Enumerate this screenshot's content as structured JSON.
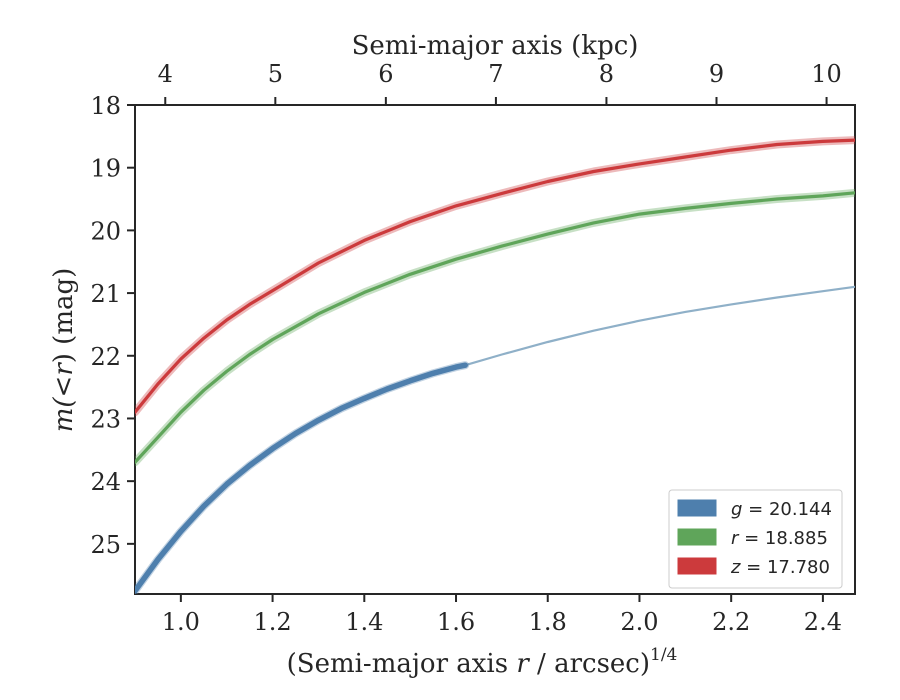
{
  "chart_data": {
    "type": "line",
    "title": "",
    "xlabel_parts": {
      "pre": "(Semi-major axis ",
      "var": "r",
      "post": " / arcsec)",
      "sup": "1/4"
    },
    "ylabel_parts": {
      "pre": "m(<",
      "var": "r",
      "post": ") (mag)"
    },
    "top_xlabel": "Semi-major axis (kpc)",
    "xlim": [
      0.9,
      2.47
    ],
    "ylim": [
      25.8,
      18.0
    ],
    "y_inverted": true,
    "x_ticks": [
      1.0,
      1.2,
      1.4,
      1.6,
      1.8,
      2.0,
      2.2,
      2.4
    ],
    "x_tick_labels": [
      "1.0",
      "1.2",
      "1.4",
      "1.6",
      "1.8",
      "2.0",
      "2.2",
      "2.4"
    ],
    "y_ticks": [
      18,
      19,
      20,
      21,
      22,
      23,
      24,
      25
    ],
    "y_tick_labels": [
      "18",
      "19",
      "20",
      "21",
      "22",
      "23",
      "24",
      "25"
    ],
    "top_ticks": [
      4,
      5,
      6,
      7,
      8,
      9,
      10
    ],
    "top_tick_labels": [
      "4",
      "5",
      "6",
      "7",
      "8",
      "9",
      "10"
    ],
    "top_tick_x_positions": [
      0.966,
      1.206,
      1.447,
      1.687,
      1.928,
      2.168,
      2.408
    ],
    "grid": false,
    "legend_position": "lower-right",
    "series": [
      {
        "name": "g = 20.144",
        "legend_var": "g",
        "legend_value": "20.144",
        "color": "#4e7fad",
        "x": [
          0.9,
          0.95,
          1.0,
          1.05,
          1.1,
          1.15,
          1.2,
          1.25,
          1.3,
          1.35,
          1.4,
          1.45,
          1.5,
          1.55,
          1.6,
          1.62
        ],
        "y": [
          25.75,
          25.25,
          24.8,
          24.4,
          24.05,
          23.75,
          23.48,
          23.24,
          23.03,
          22.84,
          22.68,
          22.53,
          22.4,
          22.28,
          22.18,
          22.15
        ],
        "extrapolation": {
          "color": "#8fb0c8",
          "x": [
            1.62,
            1.7,
            1.8,
            1.9,
            2.0,
            2.1,
            2.2,
            2.3,
            2.4,
            2.47
          ],
          "y": [
            22.15,
            21.98,
            21.78,
            21.6,
            21.44,
            21.3,
            21.18,
            21.07,
            20.97,
            20.9
          ]
        }
      },
      {
        "name": "r = 18.885",
        "legend_var": "r",
        "legend_value": "18.885",
        "color": "#5fa55a",
        "x": [
          0.9,
          0.95,
          1.0,
          1.05,
          1.1,
          1.15,
          1.2,
          1.3,
          1.4,
          1.5,
          1.6,
          1.7,
          1.8,
          1.9,
          2.0,
          2.1,
          2.2,
          2.3,
          2.4,
          2.47
        ],
        "y": [
          23.7,
          23.3,
          22.9,
          22.55,
          22.25,
          21.98,
          21.74,
          21.33,
          20.99,
          20.7,
          20.46,
          20.25,
          20.06,
          19.88,
          19.74,
          19.65,
          19.57,
          19.5,
          19.45,
          19.4
        ]
      },
      {
        "name": "z = 17.780",
        "legend_var": "z",
        "legend_value": "17.780",
        "color": "#cc3a3c",
        "x": [
          0.9,
          0.95,
          1.0,
          1.05,
          1.1,
          1.15,
          1.2,
          1.3,
          1.4,
          1.5,
          1.6,
          1.7,
          1.8,
          1.9,
          2.0,
          2.1,
          2.2,
          2.3,
          2.4,
          2.47
        ],
        "y": [
          22.9,
          22.45,
          22.05,
          21.72,
          21.43,
          21.18,
          20.96,
          20.52,
          20.16,
          19.86,
          19.61,
          19.41,
          19.22,
          19.06,
          18.94,
          18.83,
          18.72,
          18.63,
          18.58,
          18.56
        ]
      }
    ]
  }
}
